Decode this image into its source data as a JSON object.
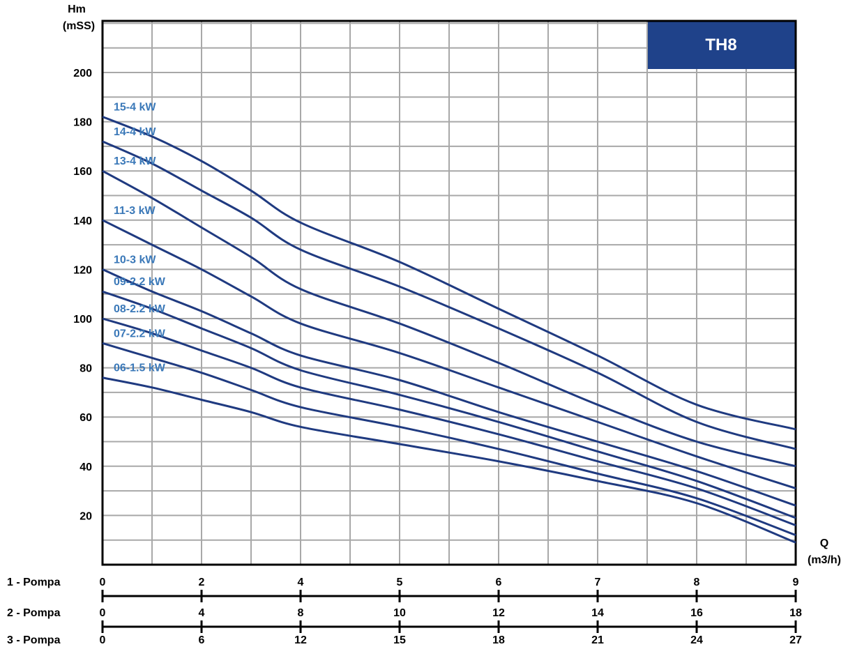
{
  "chart_data": {
    "type": "line",
    "title": "TH8",
    "ylabel_line1": "Hm",
    "ylabel_line2": "(mSS)",
    "xlabel_line1": "Q",
    "xlabel_line2": "(m3/h)",
    "ylim": [
      0,
      220
    ],
    "grid": true,
    "y_ticks": [
      20,
      40,
      60,
      80,
      100,
      120,
      140,
      160,
      180,
      200
    ],
    "x_axes": [
      {
        "label": "1 - Pompa",
        "ticks": [
          "0",
          "2",
          "4",
          "5",
          "6",
          "7",
          "8",
          "9"
        ]
      },
      {
        "label": "2 - Pompa",
        "ticks": [
          "0",
          "4",
          "8",
          "10",
          "12",
          "14",
          "16",
          "18"
        ]
      },
      {
        "label": "3 - Pompa",
        "ticks": [
          "0",
          "6",
          "12",
          "15",
          "18",
          "21",
          "24",
          "27"
        ]
      }
    ],
    "x_tick_positions_1pompa": [
      0,
      2,
      4,
      5,
      6,
      7,
      8,
      9
    ],
    "colors": {
      "curve": "#1f3a80",
      "label": "#3a78b8",
      "title_bg": "#1f428a",
      "title_text": "#ffffff",
      "grid": "#a8a8a8"
    },
    "x": [
      0,
      1,
      2,
      3,
      4,
      5,
      6,
      7,
      8,
      9
    ],
    "series": [
      {
        "name": "15-4 kW",
        "values": [
          182,
          174,
          164,
          152,
          139,
          123,
          104,
          85,
          65,
          55
        ]
      },
      {
        "name": "14-4 kW",
        "values": [
          172,
          163,
          152,
          141,
          128,
          113,
          96,
          78,
          58,
          47
        ]
      },
      {
        "name": "13-4 kW",
        "values": [
          160,
          149,
          137,
          125,
          112,
          98,
          82,
          65,
          50,
          40
        ]
      },
      {
        "name": "11-3 kW",
        "values": [
          140,
          130,
          120,
          109,
          98,
          86,
          72,
          58,
          44,
          31
        ]
      },
      {
        "name": "10-3 kW",
        "values": [
          120,
          111,
          103,
          94,
          85,
          75,
          62,
          50,
          38,
          24
        ]
      },
      {
        "name": "09-2.2 kW",
        "values": [
          111,
          104,
          96,
          88,
          79,
          69,
          58,
          46,
          34,
          19
        ]
      },
      {
        "name": "08-2.2 kW",
        "values": [
          100,
          94,
          87,
          80,
          72,
          63,
          53,
          42,
          31,
          16
        ]
      },
      {
        "name": "07-2.2 kW",
        "values": [
          90,
          84,
          78,
          71,
          64,
          56,
          47,
          37,
          27,
          12
        ]
      },
      {
        "name": "06-1.5 kW",
        "values": [
          76,
          72,
          67,
          62,
          56,
          49,
          42,
          34,
          25,
          9
        ]
      }
    ]
  }
}
